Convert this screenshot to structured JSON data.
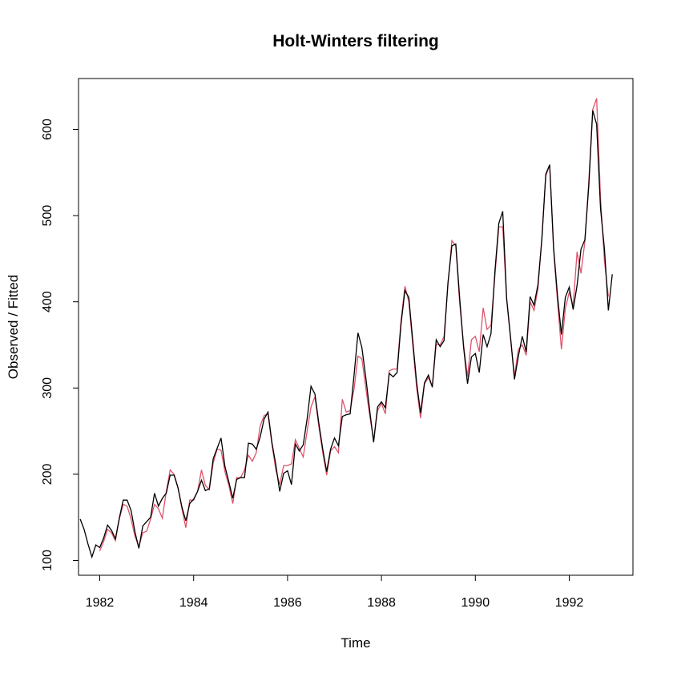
{
  "chart_data": {
    "type": "line",
    "title": "Holt-Winters filtering",
    "xlabel": "Time",
    "ylabel": "Observed / Fitted",
    "xlim": [
      1981.583,
      1992.917
    ],
    "ylim": [
      100,
      650
    ],
    "grid": false,
    "x_ticks": [
      1982,
      1984,
      1986,
      1988,
      1990,
      1992
    ],
    "x_tick_labels": [
      "1982",
      "1984",
      "1986",
      "1988",
      "1990",
      "1992"
    ],
    "y_ticks": [
      100,
      200,
      300,
      400,
      500,
      600
    ],
    "y_tick_labels": [
      "100",
      "200",
      "300",
      "400",
      "500",
      "600"
    ],
    "series_start": 1981.583333,
    "series_step": 0.083333,
    "series": [
      {
        "role": "observed",
        "color": "#000000",
        "start": 1981.583333,
        "values": [
          148,
          136,
          119,
          104,
          118,
          115,
          126,
          141,
          135,
          125,
          149,
          170,
          170,
          158,
          133,
          114,
          140,
          145,
          150,
          178,
          163,
          172,
          178,
          199,
          199,
          184,
          162,
          146,
          166,
          171,
          180,
          193,
          181,
          183,
          218,
          230,
          242,
          209,
          191,
          172,
          194,
          196,
          196,
          236,
          235,
          229,
          243,
          264,
          272,
          237,
          211,
          180,
          201,
          204,
          188,
          235,
          227,
          234,
          264,
          302,
          293,
          259,
          229,
          203,
          229,
          242,
          233,
          267,
          269,
          270,
          315,
          364,
          347,
          312,
          274,
          237,
          278,
          284,
          277,
          317,
          313,
          318,
          374,
          413,
          405,
          355,
          306,
          271,
          306,
          315,
          301,
          356,
          348,
          355,
          422,
          465,
          467,
          404,
          347,
          305,
          336,
          340,
          318,
          362,
          348,
          363,
          435,
          491,
          505,
          404,
          359,
          310,
          337,
          360,
          342,
          406,
          396,
          420,
          472,
          548,
          559,
          463,
          407,
          362,
          405,
          417,
          391,
          419,
          461,
          472,
          535,
          622,
          606,
          508,
          461,
          390,
          432
        ]
      },
      {
        "role": "fitted",
        "color": "#DF536B",
        "start": 1982.0,
        "values": [
          111,
          122,
          136,
          132,
          123,
          148,
          165,
          163,
          148,
          128,
          116,
          132,
          134,
          148,
          165,
          160,
          149,
          180,
          205,
          200,
          185,
          160,
          138,
          170,
          170,
          180,
          205,
          187,
          182,
          213,
          229,
          228,
          203,
          187,
          166,
          196,
          196,
          205,
          222,
          215,
          225,
          256,
          268,
          270,
          235,
          205,
          188,
          210,
          210,
          212,
          240,
          230,
          220,
          250,
          278,
          290,
          255,
          225,
          199,
          227,
          232,
          225,
          287,
          272,
          274,
          299,
          337,
          334,
          300,
          268,
          240,
          274,
          282,
          270,
          320,
          322,
          322,
          378,
          418,
          400,
          350,
          300,
          265,
          305,
          312,
          302,
          351,
          350,
          360,
          420,
          471,
          465,
          398,
          350,
          313,
          356,
          360,
          342,
          393,
          368,
          373,
          430,
          487,
          487,
          403,
          357,
          314,
          345,
          350,
          338,
          400,
          390,
          415,
          475,
          546,
          559,
          460,
          400,
          345,
          392,
          411,
          395,
          458,
          433,
          470,
          540,
          623,
          636,
          520,
          447,
          406
        ]
      }
    ]
  }
}
